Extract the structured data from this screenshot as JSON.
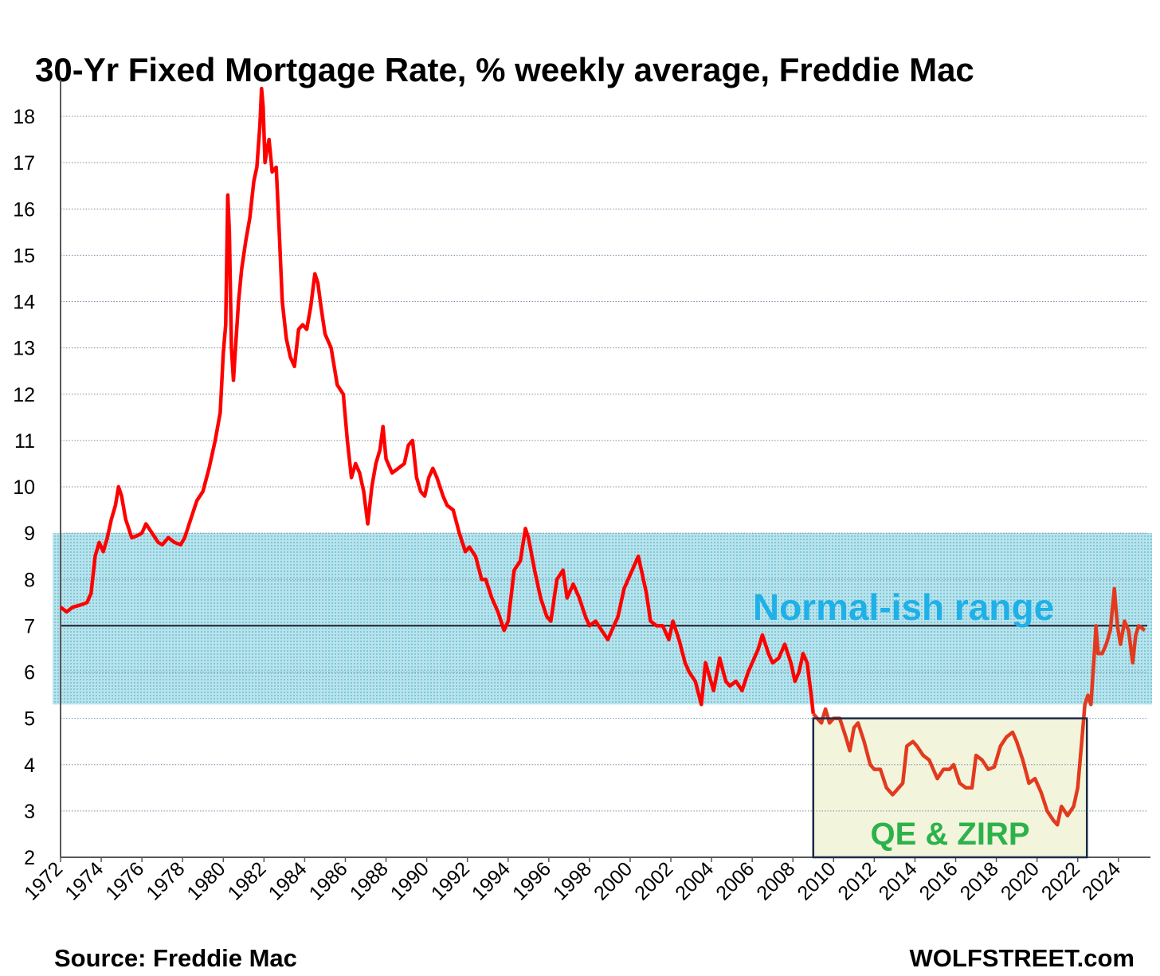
{
  "chart_data": {
    "type": "line",
    "title": "30-Yr Fixed Mortgage Rate, % weekly average, Freddie Mac",
    "source": "Source: Freddie Mac",
    "brand": "WOLFSTREET.com",
    "ylim": [
      2,
      18.5
    ],
    "xlim": [
      1972,
      2025.3
    ],
    "yticks": [
      2,
      3,
      4,
      5,
      6,
      7,
      8,
      9,
      10,
      11,
      12,
      13,
      14,
      15,
      16,
      17,
      18
    ],
    "xticks": [
      "1972",
      "1974",
      "1976",
      "1978",
      "1980",
      "1982",
      "1984",
      "1986",
      "1988",
      "1990",
      "1992",
      "1994",
      "1996",
      "1998",
      "2000",
      "2002",
      "2004",
      "2006",
      "2008",
      "2010",
      "2012",
      "2014",
      "2016",
      "2018",
      "2020",
      "2022",
      "2024"
    ],
    "grid": "horizontal dotted",
    "reference_line": 7,
    "colors": {
      "line": "#ff0000",
      "line_late": "#e23a1e",
      "normal_band": "#a6dbe6",
      "qe_box": "#f2f4dc",
      "normal_text": "#1fb0e8",
      "qe_text": "#2cb24a",
      "ref_line": "#1a1a2e",
      "qe_border": "#1c2a45"
    },
    "annotations": [
      {
        "label": "Normal-ish range",
        "range": [
          5.3,
          9.0
        ],
        "x_range": [
          1972,
          2025.3
        ]
      },
      {
        "label": "QE & ZIRP",
        "range": [
          2,
          5.0
        ],
        "x_range": [
          2009.0,
          2022.45
        ]
      }
    ],
    "series": [
      {
        "points": [
          [
            1972.0,
            7.4
          ],
          [
            1972.3,
            7.3
          ],
          [
            1972.6,
            7.4
          ],
          [
            1973.0,
            7.45
          ],
          [
            1973.3,
            7.5
          ],
          [
            1973.5,
            7.7
          ],
          [
            1973.7,
            8.5
          ],
          [
            1973.9,
            8.8
          ],
          [
            1974.1,
            8.6
          ],
          [
            1974.3,
            8.9
          ],
          [
            1974.5,
            9.3
          ],
          [
            1974.7,
            9.6
          ],
          [
            1974.85,
            10.0
          ],
          [
            1975.0,
            9.8
          ],
          [
            1975.2,
            9.3
          ],
          [
            1975.5,
            8.9
          ],
          [
            1975.8,
            8.95
          ],
          [
            1976.0,
            9.0
          ],
          [
            1976.2,
            9.2
          ],
          [
            1976.5,
            9.0
          ],
          [
            1976.8,
            8.8
          ],
          [
            1977.0,
            8.75
          ],
          [
            1977.3,
            8.9
          ],
          [
            1977.6,
            8.8
          ],
          [
            1977.9,
            8.75
          ],
          [
            1978.1,
            8.9
          ],
          [
            1978.4,
            9.3
          ],
          [
            1978.7,
            9.7
          ],
          [
            1979.0,
            9.9
          ],
          [
            1979.3,
            10.4
          ],
          [
            1979.6,
            11.0
          ],
          [
            1979.85,
            11.6
          ],
          [
            1980.0,
            12.9
          ],
          [
            1980.12,
            13.5
          ],
          [
            1980.22,
            16.3
          ],
          [
            1980.3,
            15.5
          ],
          [
            1980.4,
            13.0
          ],
          [
            1980.5,
            12.3
          ],
          [
            1980.6,
            13.0
          ],
          [
            1980.75,
            14.0
          ],
          [
            1980.9,
            14.7
          ],
          [
            1981.1,
            15.3
          ],
          [
            1981.3,
            15.8
          ],
          [
            1981.5,
            16.6
          ],
          [
            1981.65,
            16.9
          ],
          [
            1981.8,
            17.8
          ],
          [
            1981.88,
            18.6
          ],
          [
            1981.96,
            18.2
          ],
          [
            1982.05,
            17.0
          ],
          [
            1982.15,
            17.3
          ],
          [
            1982.25,
            17.5
          ],
          [
            1982.4,
            16.8
          ],
          [
            1982.6,
            16.9
          ],
          [
            1982.75,
            15.5
          ],
          [
            1982.9,
            14.0
          ],
          [
            1983.1,
            13.2
          ],
          [
            1983.3,
            12.8
          ],
          [
            1983.5,
            12.6
          ],
          [
            1983.7,
            13.4
          ],
          [
            1983.9,
            13.5
          ],
          [
            1984.1,
            13.4
          ],
          [
            1984.3,
            13.9
          ],
          [
            1984.5,
            14.6
          ],
          [
            1984.65,
            14.4
          ],
          [
            1984.8,
            13.9
          ],
          [
            1985.0,
            13.3
          ],
          [
            1985.3,
            13.0
          ],
          [
            1985.6,
            12.2
          ],
          [
            1985.9,
            12.0
          ],
          [
            1986.1,
            11.0
          ],
          [
            1986.3,
            10.2
          ],
          [
            1986.5,
            10.5
          ],
          [
            1986.7,
            10.3
          ],
          [
            1986.9,
            9.9
          ],
          [
            1987.1,
            9.2
          ],
          [
            1987.3,
            10.0
          ],
          [
            1987.5,
            10.5
          ],
          [
            1987.7,
            10.8
          ],
          [
            1987.85,
            11.3
          ],
          [
            1988.0,
            10.6
          ],
          [
            1988.3,
            10.3
          ],
          [
            1988.6,
            10.4
          ],
          [
            1988.9,
            10.5
          ],
          [
            1989.1,
            10.9
          ],
          [
            1989.3,
            11.0
          ],
          [
            1989.5,
            10.2
          ],
          [
            1989.7,
            9.9
          ],
          [
            1989.9,
            9.8
          ],
          [
            1990.1,
            10.2
          ],
          [
            1990.3,
            10.4
          ],
          [
            1990.5,
            10.2
          ],
          [
            1990.8,
            9.8
          ],
          [
            1991.0,
            9.6
          ],
          [
            1991.3,
            9.5
          ],
          [
            1991.6,
            9.0
          ],
          [
            1991.9,
            8.6
          ],
          [
            1992.1,
            8.7
          ],
          [
            1992.4,
            8.5
          ],
          [
            1992.7,
            8.0
          ],
          [
            1992.9,
            8.0
          ],
          [
            1993.2,
            7.6
          ],
          [
            1993.5,
            7.3
          ],
          [
            1993.8,
            6.9
          ],
          [
            1994.0,
            7.1
          ],
          [
            1994.3,
            8.2
          ],
          [
            1994.6,
            8.4
          ],
          [
            1994.85,
            9.1
          ],
          [
            1995.0,
            8.9
          ],
          [
            1995.3,
            8.2
          ],
          [
            1995.6,
            7.6
          ],
          [
            1995.9,
            7.2
          ],
          [
            1996.1,
            7.1
          ],
          [
            1996.4,
            8.0
          ],
          [
            1996.7,
            8.2
          ],
          [
            1996.9,
            7.6
          ],
          [
            1997.2,
            7.9
          ],
          [
            1997.5,
            7.6
          ],
          [
            1997.8,
            7.2
          ],
          [
            1998.0,
            7.0
          ],
          [
            1998.3,
            7.1
          ],
          [
            1998.6,
            6.9
          ],
          [
            1998.9,
            6.7
          ],
          [
            1999.1,
            6.9
          ],
          [
            1999.4,
            7.2
          ],
          [
            1999.7,
            7.8
          ],
          [
            1999.9,
            8.0
          ],
          [
            2000.2,
            8.3
          ],
          [
            2000.4,
            8.5
          ],
          [
            2000.6,
            8.1
          ],
          [
            2000.8,
            7.7
          ],
          [
            2001.0,
            7.1
          ],
          [
            2001.3,
            7.0
          ],
          [
            2001.6,
            7.0
          ],
          [
            2001.9,
            6.7
          ],
          [
            2002.1,
            7.1
          ],
          [
            2002.4,
            6.7
          ],
          [
            2002.7,
            6.2
          ],
          [
            2002.9,
            6.0
          ],
          [
            2003.2,
            5.8
          ],
          [
            2003.5,
            5.3
          ],
          [
            2003.7,
            6.2
          ],
          [
            2003.9,
            5.9
          ],
          [
            2004.1,
            5.6
          ],
          [
            2004.4,
            6.3
          ],
          [
            2004.7,
            5.8
          ],
          [
            2004.9,
            5.7
          ],
          [
            2005.2,
            5.8
          ],
          [
            2005.5,
            5.6
          ],
          [
            2005.8,
            6.0
          ],
          [
            2006.0,
            6.2
          ],
          [
            2006.3,
            6.5
          ],
          [
            2006.5,
            6.8
          ],
          [
            2006.8,
            6.4
          ],
          [
            2007.0,
            6.2
          ],
          [
            2007.3,
            6.3
          ],
          [
            2007.6,
            6.6
          ],
          [
            2007.9,
            6.2
          ],
          [
            2008.1,
            5.8
          ],
          [
            2008.3,
            6.0
          ],
          [
            2008.5,
            6.4
          ],
          [
            2008.7,
            6.2
          ],
          [
            2008.9,
            5.5
          ],
          [
            2009.0,
            5.1
          ],
          [
            2009.2,
            5.0
          ],
          [
            2009.4,
            4.9
          ],
          [
            2009.6,
            5.2
          ],
          [
            2009.8,
            4.9
          ],
          [
            2010.0,
            5.0
          ],
          [
            2010.3,
            5.0
          ],
          [
            2010.6,
            4.6
          ],
          [
            2010.8,
            4.3
          ],
          [
            2011.0,
            4.8
          ],
          [
            2011.2,
            4.9
          ],
          [
            2011.5,
            4.5
          ],
          [
            2011.8,
            4.0
          ],
          [
            2012.0,
            3.9
          ],
          [
            2012.3,
            3.9
          ],
          [
            2012.6,
            3.5
          ],
          [
            2012.9,
            3.35
          ],
          [
            2013.1,
            3.45
          ],
          [
            2013.4,
            3.6
          ],
          [
            2013.6,
            4.4
          ],
          [
            2013.9,
            4.5
          ],
          [
            2014.1,
            4.4
          ],
          [
            2014.4,
            4.2
          ],
          [
            2014.7,
            4.1
          ],
          [
            2014.9,
            3.9
          ],
          [
            2015.1,
            3.7
          ],
          [
            2015.4,
            3.9
          ],
          [
            2015.7,
            3.9
          ],
          [
            2015.9,
            4.0
          ],
          [
            2016.2,
            3.6
          ],
          [
            2016.5,
            3.5
          ],
          [
            2016.8,
            3.5
          ],
          [
            2017.0,
            4.2
          ],
          [
            2017.3,
            4.1
          ],
          [
            2017.6,
            3.9
          ],
          [
            2017.9,
            3.95
          ],
          [
            2018.2,
            4.4
          ],
          [
            2018.5,
            4.6
          ],
          [
            2018.8,
            4.7
          ],
          [
            2019.0,
            4.5
          ],
          [
            2019.3,
            4.1
          ],
          [
            2019.6,
            3.6
          ],
          [
            2019.9,
            3.7
          ],
          [
            2020.2,
            3.4
          ],
          [
            2020.5,
            3.0
          ],
          [
            2020.8,
            2.8
          ],
          [
            2021.0,
            2.7
          ],
          [
            2021.2,
            3.1
          ],
          [
            2021.5,
            2.9
          ],
          [
            2021.8,
            3.1
          ],
          [
            2022.0,
            3.5
          ],
          [
            2022.2,
            4.5
          ],
          [
            2022.35,
            5.3
          ],
          [
            2022.5,
            5.5
          ],
          [
            2022.65,
            5.3
          ],
          [
            2022.8,
            6.3
          ],
          [
            2022.9,
            7.0
          ],
          [
            2023.0,
            6.4
          ],
          [
            2023.2,
            6.4
          ],
          [
            2023.4,
            6.6
          ],
          [
            2023.6,
            6.9
          ],
          [
            2023.8,
            7.8
          ],
          [
            2023.95,
            7.0
          ],
          [
            2024.1,
            6.6
          ],
          [
            2024.3,
            7.1
          ],
          [
            2024.5,
            6.9
          ],
          [
            2024.7,
            6.2
          ],
          [
            2024.85,
            6.8
          ],
          [
            2025.0,
            7.0
          ],
          [
            2025.3,
            6.9
          ]
        ]
      }
    ]
  }
}
